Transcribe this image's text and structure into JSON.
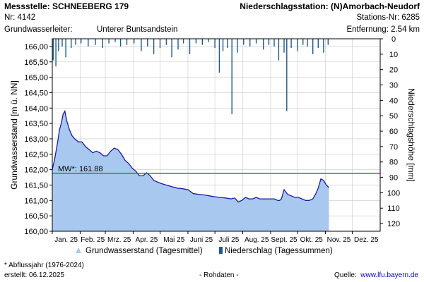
{
  "header": {
    "station_label": "Messstelle: SCHNEEBERG 179",
    "number": "Nr: 4142",
    "aquifer_label": "Grundwasserleiter:",
    "aquifer_value": "Unterer Buntsandstein",
    "precip_station": "Niederschlagsstation: (N)Amorbach-Neudorf",
    "precip_station_no": "Stations-Nr: 6285",
    "distance": "Entfernung: 2.54 km"
  },
  "footer": {
    "footnote": "* Abflussjahr (1976-2024)",
    "created": "erstellt:  06.12.2025",
    "raw": "- Rohdaten -",
    "source_label": "Quelle:",
    "source_link": "www.lfu.bayern.de"
  },
  "colors": {
    "area_fill": "#a8c8f0",
    "area_line": "#1a1aa8",
    "mean_line": "#2e8b2e",
    "precip": "#1e5a8c"
  },
  "chart_data": {
    "type": "area",
    "ylabel": "Grundwasserstand [m ü. NN]",
    "y2label": "Niederschlagshöhe [mm]",
    "ylim": [
      160.0,
      166.25
    ],
    "y2lim": [
      0,
      125
    ],
    "yticks": [
      "160,00",
      "160,50",
      "161,00",
      "161,50",
      "162,00",
      "162,50",
      "163,00",
      "163,50",
      "164,00",
      "164,50",
      "165,00",
      "165,50",
      "166,00"
    ],
    "y2ticks": [
      "0",
      "10",
      "20",
      "30",
      "40",
      "50",
      "60",
      "70",
      "80",
      "90",
      "100",
      "110",
      "120"
    ],
    "xlim": [
      "2025-01-01",
      "2026-01-01"
    ],
    "xticks": [
      "Jan. 25",
      "Feb. 25",
      "Mrz. 25",
      "Apr. 25",
      "Mai 25",
      "Juni 25",
      "Juli 25",
      "Aug. 25",
      "Sept. 25",
      "Okt. 25",
      "Nov. 25",
      "Dez. 25"
    ],
    "grid": true,
    "mean_label": "MW*: 161.88",
    "mean_value": 161.88,
    "legend": [
      "Grundwasserstand (Tagesmittel)",
      "Niederschlag (Tagessummen)"
    ],
    "legend_position": "bottom",
    "groundwater": {
      "name": "Grundwasserstand (Tagesmittel)",
      "x": [
        "2025-01-01",
        "2025-01-04",
        "2025-01-07",
        "2025-01-09",
        "2025-01-11",
        "2025-01-13",
        "2025-01-15",
        "2025-01-17",
        "2025-01-20",
        "2025-01-23",
        "2025-01-26",
        "2025-01-30",
        "2025-02-03",
        "2025-02-07",
        "2025-02-11",
        "2025-02-15",
        "2025-02-19",
        "2025-02-23",
        "2025-02-27",
        "2025-03-03",
        "2025-03-07",
        "2025-03-11",
        "2025-03-15",
        "2025-03-19",
        "2025-03-23",
        "2025-03-27",
        "2025-03-31",
        "2025-04-04",
        "2025-04-08",
        "2025-04-12",
        "2025-04-16",
        "2025-04-20",
        "2025-04-24",
        "2025-04-28",
        "2025-05-02",
        "2025-05-08",
        "2025-05-14",
        "2025-05-20",
        "2025-05-26",
        "2025-06-01",
        "2025-06-07",
        "2025-06-13",
        "2025-06-19",
        "2025-06-25",
        "2025-07-01",
        "2025-07-07",
        "2025-07-13",
        "2025-07-19",
        "2025-07-23",
        "2025-07-27",
        "2025-07-31",
        "2025-08-04",
        "2025-08-08",
        "2025-08-12",
        "2025-08-16",
        "2025-08-20",
        "2025-08-26",
        "2025-09-01",
        "2025-09-05",
        "2025-09-09",
        "2025-09-11",
        "2025-09-13",
        "2025-09-16",
        "2025-09-20",
        "2025-09-24",
        "2025-09-28",
        "2025-10-02",
        "2025-10-06",
        "2025-10-10",
        "2025-10-14",
        "2025-10-18",
        "2025-10-21",
        "2025-10-24",
        "2025-10-27",
        "2025-10-30",
        "2025-11-02",
        "2025-11-05"
      ],
      "y": [
        162.0,
        162.4,
        162.9,
        163.3,
        163.5,
        163.8,
        163.9,
        163.6,
        163.3,
        163.1,
        163.0,
        162.9,
        162.9,
        162.75,
        162.65,
        162.55,
        162.6,
        162.55,
        162.45,
        162.45,
        162.6,
        162.7,
        162.65,
        162.5,
        162.3,
        162.2,
        162.05,
        161.95,
        161.8,
        161.8,
        161.9,
        161.8,
        161.65,
        161.6,
        161.55,
        161.5,
        161.45,
        161.4,
        161.38,
        161.35,
        161.22,
        161.2,
        161.18,
        161.15,
        161.12,
        161.1,
        161.08,
        161.05,
        161.08,
        160.95,
        161.0,
        161.1,
        161.05,
        161.05,
        161.1,
        161.05,
        161.05,
        161.05,
        161.05,
        161.0,
        161.0,
        161.05,
        161.35,
        161.2,
        161.15,
        161.1,
        161.1,
        161.05,
        161.0,
        161.0,
        161.05,
        161.2,
        161.4,
        161.7,
        161.65,
        161.5,
        161.42
      ]
    },
    "precipitation": {
      "name": "Niederschlag (Tagessummen)",
      "x": [
        "2025-01-02",
        "2025-01-05",
        "2025-01-08",
        "2025-01-12",
        "2025-01-16",
        "2025-01-22",
        "2025-01-27",
        "2025-02-02",
        "2025-02-10",
        "2025-02-18",
        "2025-02-26",
        "2025-03-05",
        "2025-03-12",
        "2025-03-18",
        "2025-03-25",
        "2025-04-02",
        "2025-04-10",
        "2025-04-17",
        "2025-04-24",
        "2025-05-01",
        "2025-05-08",
        "2025-05-14",
        "2025-05-21",
        "2025-05-27",
        "2025-06-03",
        "2025-06-10",
        "2025-06-17",
        "2025-06-24",
        "2025-07-01",
        "2025-07-06",
        "2025-07-10",
        "2025-07-15",
        "2025-07-20",
        "2025-07-26",
        "2025-08-02",
        "2025-08-09",
        "2025-08-16",
        "2025-08-24",
        "2025-08-30",
        "2025-09-05",
        "2025-09-10",
        "2025-09-16",
        "2025-09-19",
        "2025-09-24",
        "2025-10-01",
        "2025-10-07",
        "2025-10-12",
        "2025-10-18",
        "2025-10-24",
        "2025-10-30",
        "2025-11-04"
      ],
      "y": [
        14,
        18,
        8,
        5,
        12,
        6,
        4,
        3,
        5,
        4,
        6,
        3,
        2,
        5,
        4,
        3,
        8,
        5,
        10,
        6,
        4,
        12,
        7,
        3,
        10,
        3,
        4,
        2,
        6,
        22,
        8,
        6,
        49,
        9,
        4,
        5,
        3,
        7,
        4,
        5,
        14,
        9,
        47,
        6,
        8,
        4,
        5,
        10,
        6,
        9,
        4
      ]
    }
  }
}
